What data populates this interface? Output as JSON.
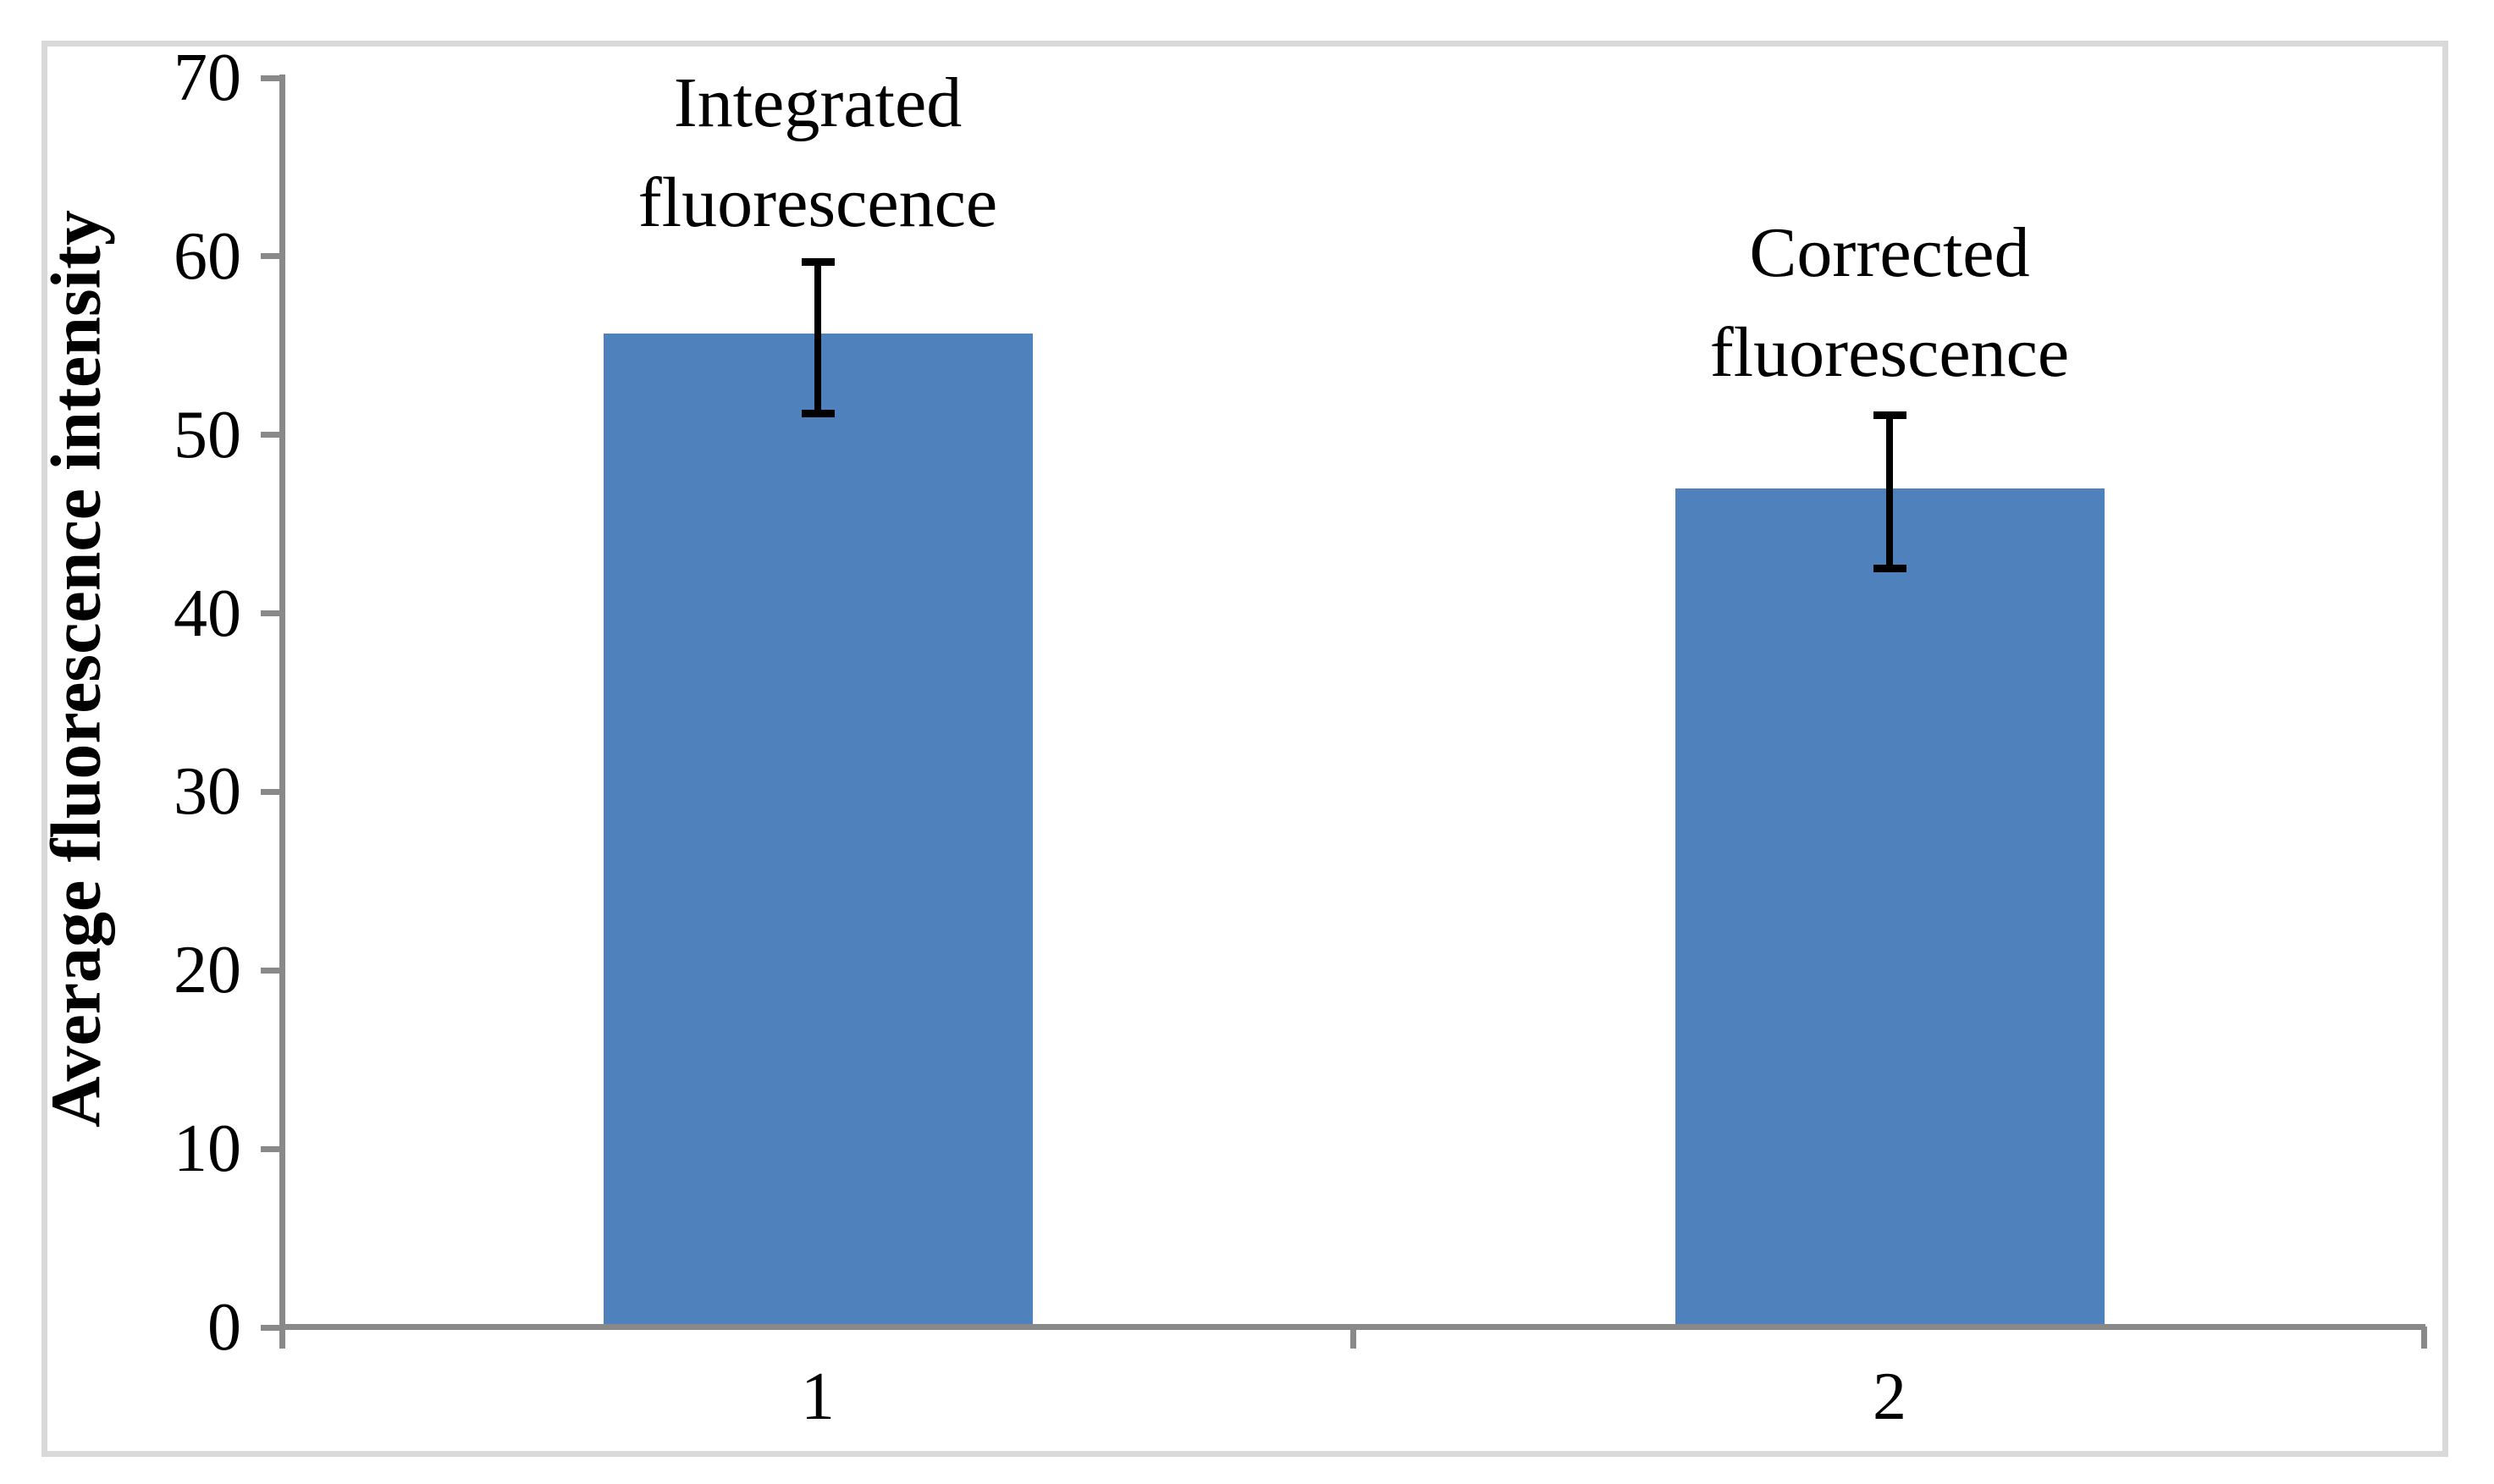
{
  "figure": {
    "background": "#FFFFFF",
    "border_color": "#D9D9D9"
  },
  "chart_data": {
    "type": "bar",
    "title": "",
    "categories": [
      "1",
      "2"
    ],
    "values": [
      55.7,
      47.0
    ],
    "error_bars": {
      "upper_bounds": [
        59.7,
        51.1
      ],
      "lower_bounds": [
        51.2,
        42.5
      ]
    },
    "point_labels": [
      [
        "Integrated",
        "fluorescence"
      ],
      [
        "Corrected",
        "fluorescence"
      ]
    ],
    "xlabel": "",
    "ylabel": "Average fluorescence intensity",
    "ylim": [
      0,
      70
    ],
    "yticks": [
      70,
      60,
      50,
      40,
      30,
      20,
      10,
      0
    ],
    "grid": false,
    "legend": null,
    "bar_color": "#4F81BD",
    "axis_color": "#898989",
    "error_bar_color": "#000000",
    "text_color": "#000000"
  }
}
